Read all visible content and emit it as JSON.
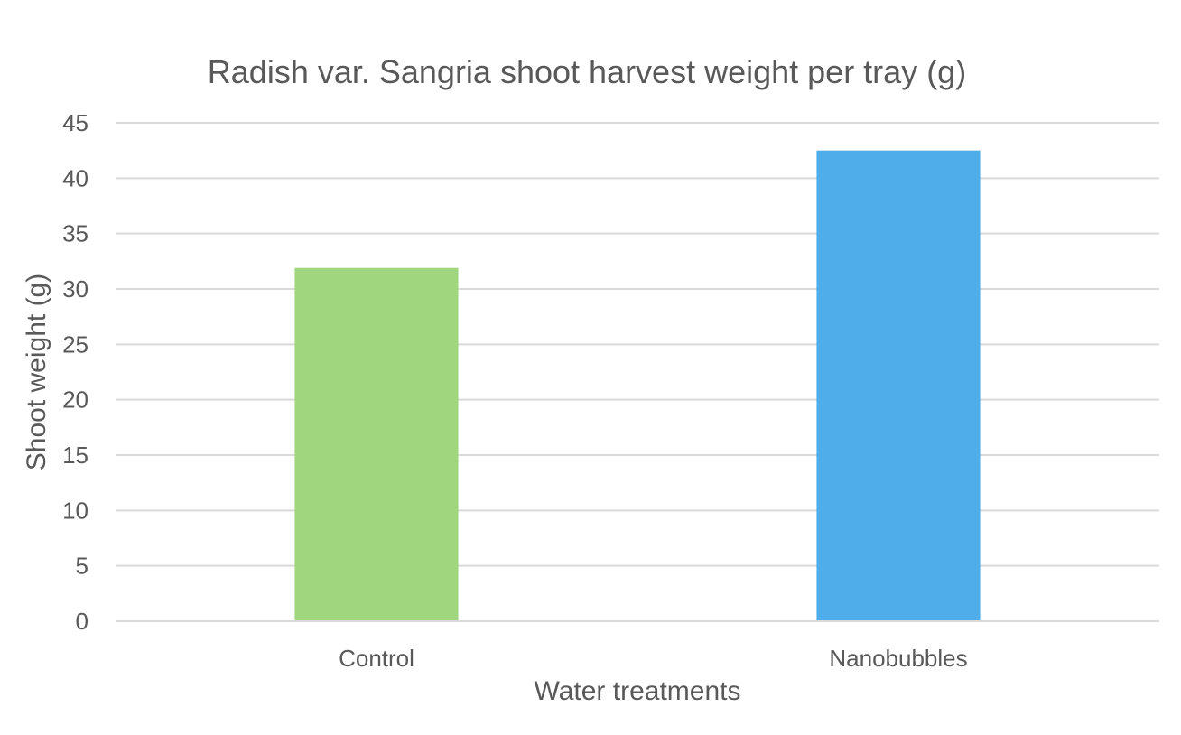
{
  "chart_data": {
    "type": "bar",
    "title": "Radish var. Sangria shoot harvest weight per tray (g)",
    "xlabel": "Water treatments",
    "ylabel": "Shoot weight (g)",
    "categories": [
      "Control",
      "Nanobubbles"
    ],
    "values": [
      31.9,
      42.5
    ],
    "bar_colors": [
      "#a0d77e",
      "#4fadea"
    ],
    "ylim": [
      0,
      45
    ],
    "yticks": [
      0,
      5,
      10,
      15,
      20,
      25,
      30,
      35,
      40,
      45
    ],
    "grid": true,
    "legend": "none"
  },
  "colors": {
    "text": "#595959",
    "grid": "#d9d9d9",
    "background": "#ffffff"
  }
}
